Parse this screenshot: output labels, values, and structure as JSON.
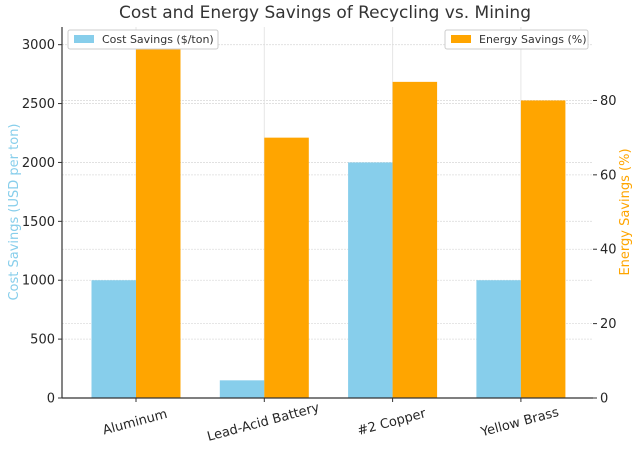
{
  "chart_data": {
    "type": "bar",
    "title": "Cost and Energy Savings of Recycling vs. Mining",
    "categories": [
      "Aluminum",
      "Lead-Acid Battery",
      "#2 Copper",
      "Yellow Brass"
    ],
    "series": [
      {
        "name": "Cost Savings ($/ton)",
        "axis": "left",
        "color": "#87CEEB",
        "values": [
          1000,
          150,
          2000,
          1000
        ]
      },
      {
        "name": "Energy Savings (%)",
        "axis": "right",
        "color": "#FFA500",
        "values": [
          95,
          70,
          85,
          80
        ]
      }
    ],
    "ylabel_left": "Cost Savings (USD per ton)",
    "ylabel_right": "Energy Savings (%)",
    "ylabel_left_color": "#87CEEB",
    "ylabel_right_color": "#FFA500",
    "ylim_left": [
      0,
      3150
    ],
    "ylim_right": [
      0,
      99.75
    ],
    "yticks_left": [
      0,
      500,
      1000,
      1500,
      2000,
      2500,
      3000
    ],
    "yticks_right": [
      0,
      20,
      40,
      60,
      80
    ],
    "grid": true,
    "legend_left_position": "top-left",
    "legend_right_position": "top-right"
  }
}
